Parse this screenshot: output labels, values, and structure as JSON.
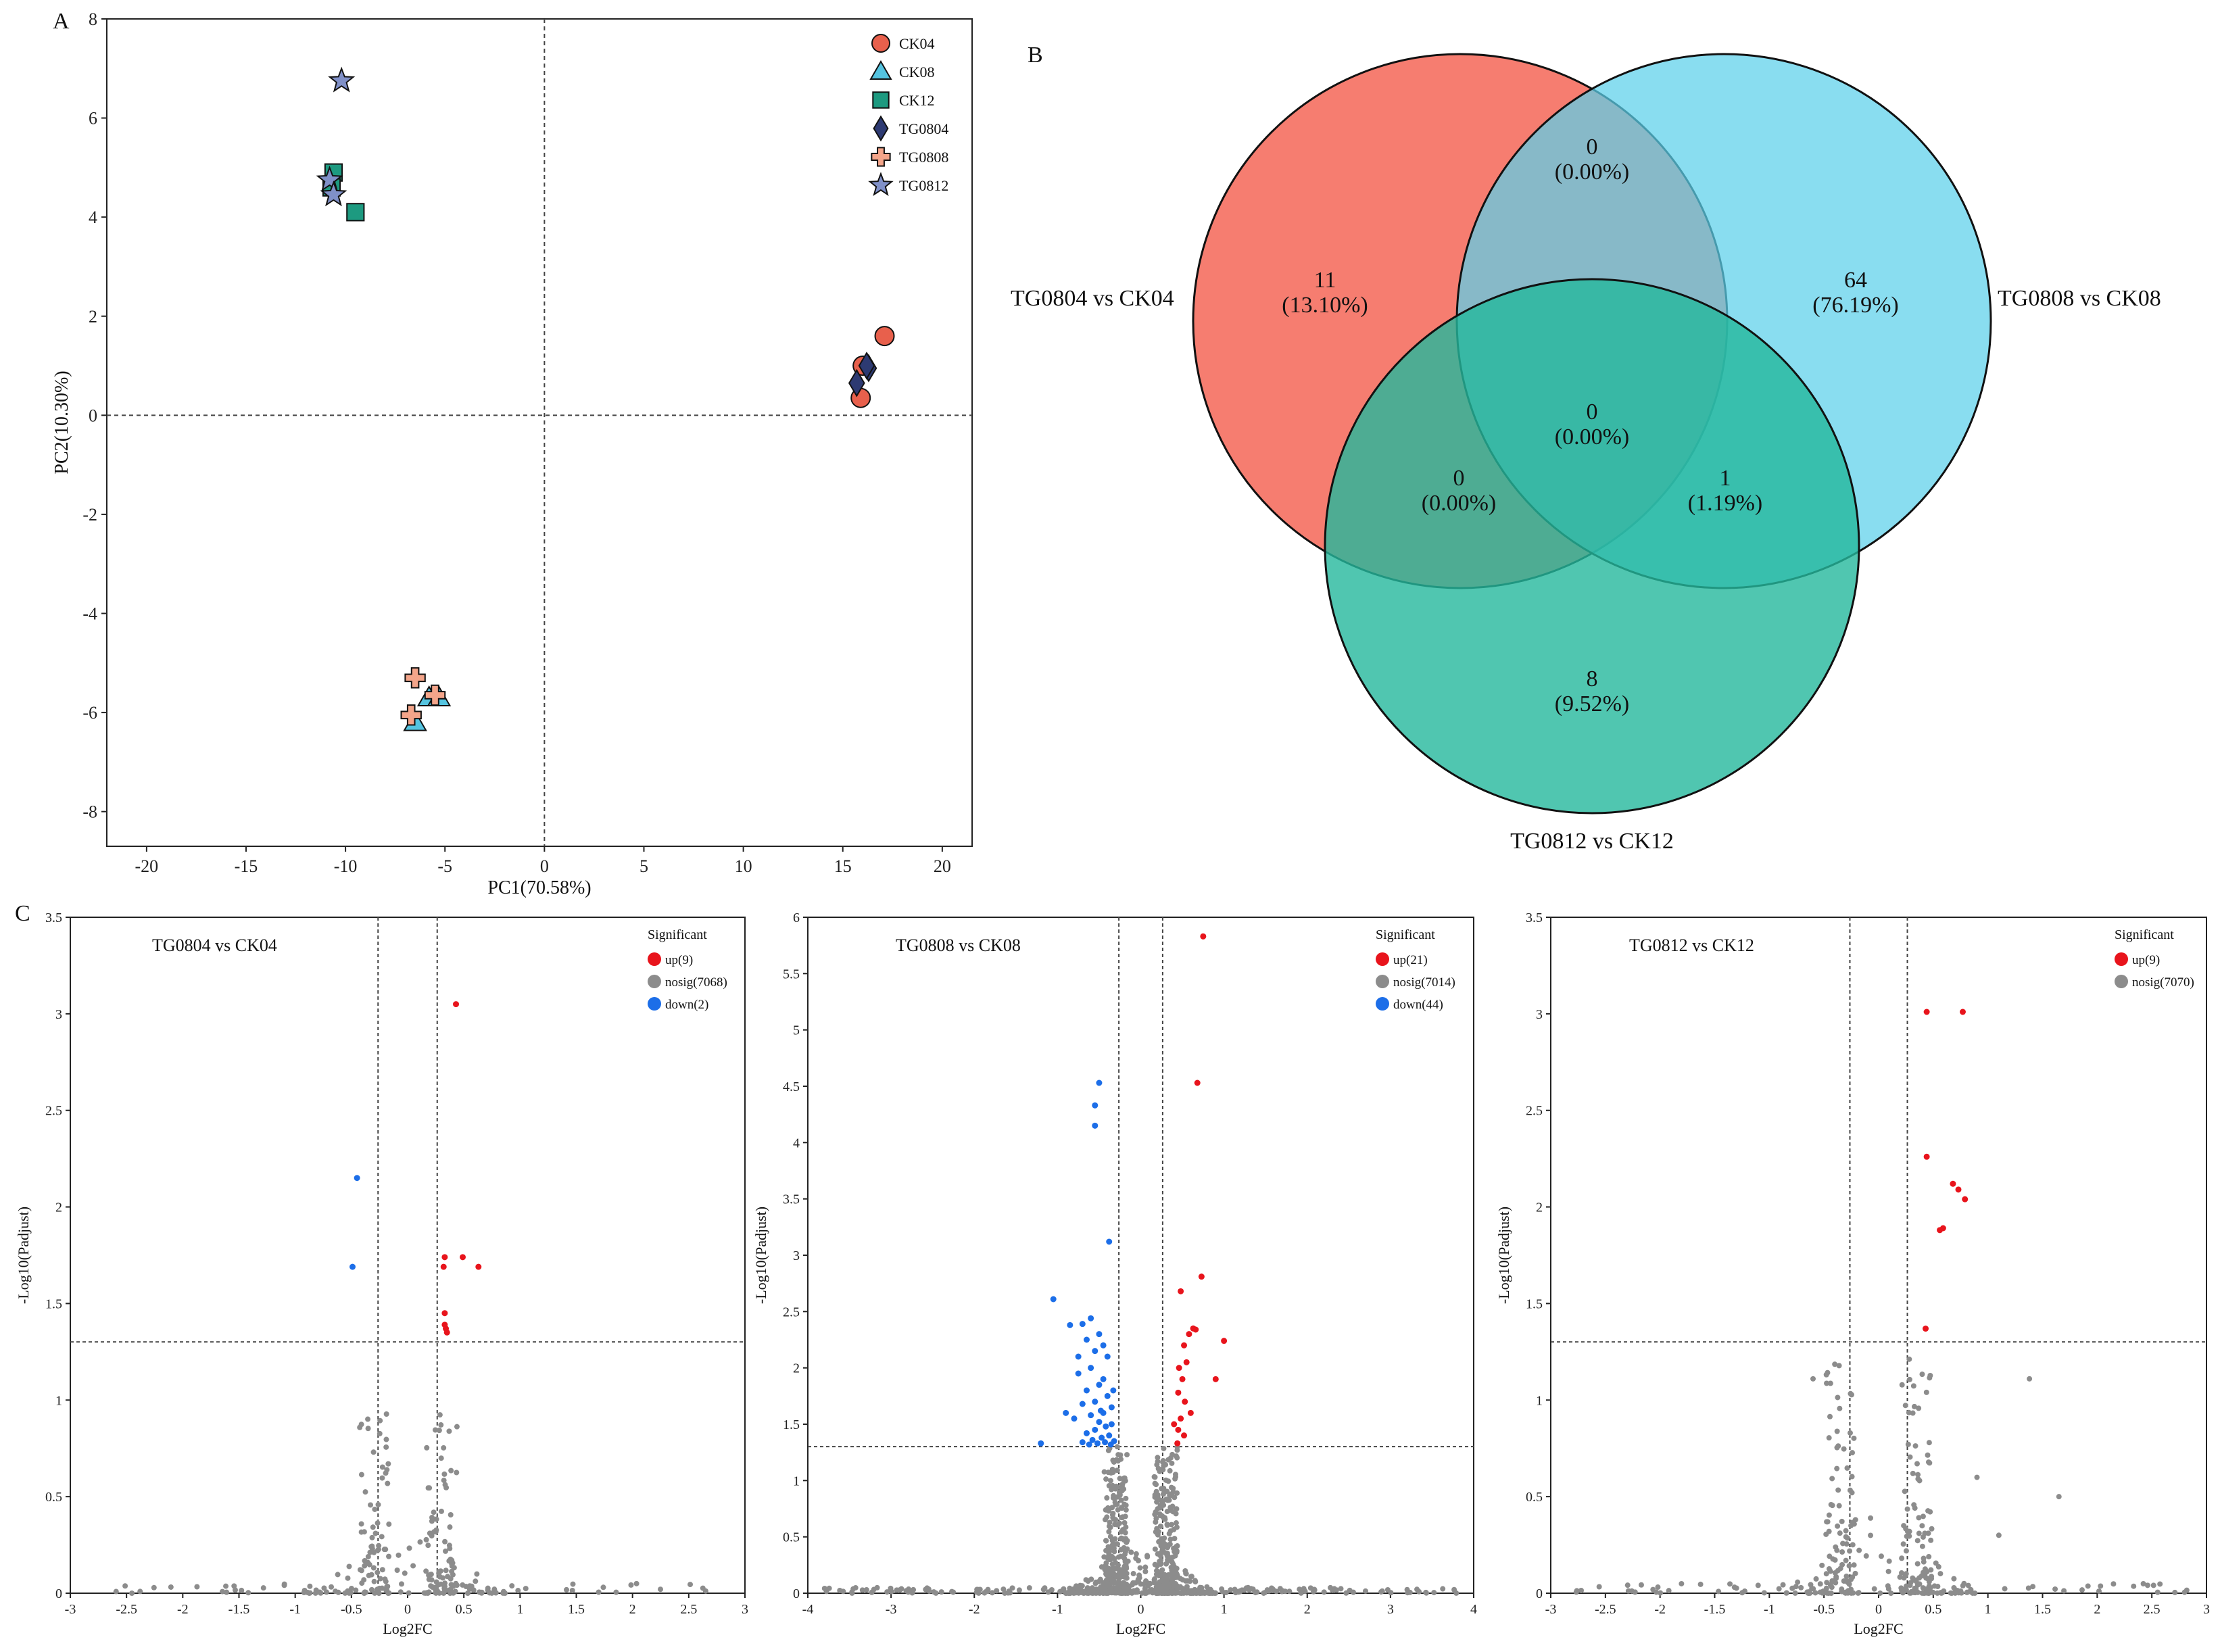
{
  "panels": {
    "A": "A",
    "B": "B",
    "C": "C"
  },
  "colors": {
    "ck04": "#e8604c",
    "ck08": "#55c4e0",
    "ck12": "#1d9a80",
    "tg0804": "#2d3a72",
    "tg0808": "#f4a58a",
    "tg0812": "#8090c8",
    "venn1": "#f56b5c",
    "venn2": "#5bd0ea",
    "venn3": "#24b89c",
    "up": "#e8141c",
    "nosig": "#8c8c8c",
    "down": "#1c6ee8"
  },
  "chart_data": [
    {
      "type": "scatter",
      "title": "",
      "xlabel": "PC1(70.58%)",
      "ylabel": "PC2(10.30%)",
      "xlim": [
        -22,
        21.5
      ],
      "ylim": [
        -8.7,
        8
      ],
      "xticks": [
        -20,
        -15,
        -10,
        -5,
        0,
        5,
        10,
        15,
        20
      ],
      "yticks": [
        -8,
        -6,
        -4,
        -2,
        0,
        2,
        4,
        6,
        8
      ],
      "reference_lines": {
        "x": 0,
        "y": 0
      },
      "legend_position": "top-right",
      "series": [
        {
          "name": "CK04",
          "marker": "circle",
          "color_key": "ck04",
          "points": [
            [
              17.1,
              1.6
            ],
            [
              16.0,
              1.0
            ],
            [
              15.9,
              0.35
            ]
          ]
        },
        {
          "name": "CK08",
          "marker": "triangle",
          "color_key": "ck08",
          "points": [
            [
              -5.8,
              -5.7
            ],
            [
              -5.3,
              -5.7
            ],
            [
              -6.5,
              -6.2
            ]
          ]
        },
        {
          "name": "CK12",
          "marker": "square",
          "color_key": "ck12",
          "points": [
            [
              -10.6,
              4.9
            ],
            [
              -9.5,
              4.1
            ],
            [
              -10.7,
              4.6
            ]
          ]
        },
        {
          "name": "TG0804",
          "marker": "diamond",
          "color_key": "tg0804",
          "points": [
            [
              16.3,
              0.95
            ],
            [
              15.7,
              0.65
            ],
            [
              16.2,
              1.0
            ]
          ]
        },
        {
          "name": "TG0808",
          "marker": "plus",
          "color_key": "tg0808",
          "points": [
            [
              -6.5,
              -5.3
            ],
            [
              -5.5,
              -5.65
            ],
            [
              -6.7,
              -6.05
            ]
          ]
        },
        {
          "name": "TG0812",
          "marker": "star",
          "color_key": "tg0812",
          "points": [
            [
              -10.2,
              6.75
            ],
            [
              -10.8,
              4.75
            ],
            [
              -10.6,
              4.45
            ]
          ]
        }
      ]
    },
    {
      "type": "venn",
      "sets": [
        "TG0804 vs CK04",
        "TG0808 vs CK08",
        "TG0812 vs CK12"
      ],
      "regions": [
        {
          "sets": [
            "TG0804 vs CK04"
          ],
          "count": "11",
          "pct": "(13.10%)"
        },
        {
          "sets": [
            "TG0808 vs CK08"
          ],
          "count": "64",
          "pct": "(76.19%)"
        },
        {
          "sets": [
            "TG0812 vs CK12"
          ],
          "count": "8",
          "pct": "(9.52%)"
        },
        {
          "sets": [
            "TG0804 vs CK04",
            "TG0808 vs CK08"
          ],
          "count": "0",
          "pct": "(0.00%)"
        },
        {
          "sets": [
            "TG0804 vs CK04",
            "TG0812 vs CK12"
          ],
          "count": "0",
          "pct": "(0.00%)"
        },
        {
          "sets": [
            "TG0808 vs CK08",
            "TG0812 vs CK12"
          ],
          "count": "1",
          "pct": "(1.19%)"
        },
        {
          "sets": [
            "TG0804 vs CK04",
            "TG0808 vs CK08",
            "TG0812 vs CK12"
          ],
          "count": "0",
          "pct": "(0.00%)"
        }
      ]
    },
    {
      "type": "scatter",
      "title": "TG0804 vs CK04",
      "xlabel": "Log2FC",
      "ylabel": "-Log10(Padjust)",
      "xlim": [
        -3,
        3
      ],
      "ylim": [
        0,
        3.5
      ],
      "xticks": [
        "-3",
        "-2.5",
        "-2",
        "-1.5",
        "-1",
        "-0.5",
        "0",
        "0.5",
        "1",
        "1.5",
        "2",
        "2.5",
        "3"
      ],
      "yticks": [
        "0",
        "0.5",
        "1",
        "1.5",
        "2",
        "2.5",
        "3",
        "3.5"
      ],
      "thresholds": {
        "x": [
          -0.263,
          0.263
        ],
        "y": 1.301
      },
      "legend_title": "Significant",
      "legend": [
        "up(9)",
        "nosig(7068)",
        "down(2)"
      ],
      "up": [
        [
          0.43,
          3.05
        ],
        [
          0.33,
          1.74
        ],
        [
          0.49,
          1.74
        ],
        [
          0.32,
          1.69
        ],
        [
          0.63,
          1.69
        ],
        [
          0.33,
          1.45
        ],
        [
          0.34,
          1.37
        ],
        [
          0.35,
          1.35
        ],
        [
          0.33,
          1.39
        ]
      ],
      "down": [
        [
          -0.45,
          2.15
        ],
        [
          -0.49,
          1.69
        ]
      ],
      "nosig_profile": {
        "x_range": [
          -2.9,
          2.9
        ],
        "peak_left": -0.3,
        "peak_right": 0.3,
        "max_y": 0.94,
        "n": 260,
        "seed": 11
      }
    },
    {
      "type": "scatter",
      "title": "TG0808 vs CK08",
      "xlabel": "Log2FC",
      "ylabel": "-Log10(Padjust)",
      "xlim": [
        -4,
        4
      ],
      "ylim": [
        0,
        6
      ],
      "xticks": [
        "-4",
        "-3",
        "-2",
        "-1",
        "0",
        "1",
        "2",
        "3",
        "4"
      ],
      "yticks": [
        "0",
        "0.5",
        "1",
        "1.5",
        "2",
        "2.5",
        "3",
        "3.5",
        "4",
        "4.5",
        "5",
        "5.5",
        "6"
      ],
      "thresholds": {
        "x": [
          -0.263,
          0.263
        ],
        "y": 1.301
      },
      "legend_title": "Significant",
      "legend": [
        "up(21)",
        "nosig(7014)",
        "down(44)"
      ],
      "up": [
        [
          0.75,
          5.83
        ],
        [
          0.68,
          4.53
        ],
        [
          0.73,
          2.81
        ],
        [
          0.48,
          2.68
        ],
        [
          0.63,
          2.35
        ],
        [
          1.0,
          2.24
        ],
        [
          0.58,
          2.3
        ],
        [
          0.66,
          2.34
        ],
        [
          0.52,
          2.2
        ],
        [
          0.46,
          2.0
        ],
        [
          0.55,
          2.05
        ],
        [
          0.45,
          1.78
        ],
        [
          0.5,
          1.9
        ],
        [
          0.53,
          1.7
        ],
        [
          0.4,
          1.5
        ],
        [
          0.45,
          1.45
        ],
        [
          0.52,
          1.4
        ],
        [
          0.44,
          1.33
        ],
        [
          0.6,
          1.6
        ],
        [
          0.9,
          1.9
        ],
        [
          0.48,
          1.55
        ]
      ],
      "down": [
        [
          -0.5,
          4.53
        ],
        [
          -0.55,
          4.33
        ],
        [
          -0.55,
          4.15
        ],
        [
          -0.38,
          3.12
        ],
        [
          -1.05,
          2.61
        ],
        [
          -0.6,
          2.44
        ],
        [
          -0.7,
          2.39
        ],
        [
          -0.5,
          2.3
        ],
        [
          -0.65,
          2.25
        ],
        [
          -0.45,
          2.2
        ],
        [
          -0.85,
          2.38
        ],
        [
          -0.55,
          2.15
        ],
        [
          -0.4,
          2.1
        ],
        [
          -0.6,
          2.0
        ],
        [
          -0.75,
          1.95
        ],
        [
          -0.45,
          1.9
        ],
        [
          -0.5,
          1.85
        ],
        [
          -0.65,
          1.8
        ],
        [
          -0.4,
          1.75
        ],
        [
          -0.55,
          1.7
        ],
        [
          -0.7,
          1.68
        ],
        [
          -0.35,
          1.65
        ],
        [
          -0.45,
          1.6
        ],
        [
          -0.6,
          1.58
        ],
        [
          -0.8,
          1.55
        ],
        [
          -0.5,
          1.52
        ],
        [
          -0.35,
          1.5
        ],
        [
          -0.42,
          1.48
        ],
        [
          -0.55,
          1.45
        ],
        [
          -0.65,
          1.42
        ],
        [
          -0.38,
          1.4
        ],
        [
          -0.47,
          1.38
        ],
        [
          -0.58,
          1.36
        ],
        [
          -0.32,
          1.35
        ],
        [
          -1.2,
          1.33
        ],
        [
          -0.43,
          1.34
        ],
        [
          -0.52,
          1.33
        ],
        [
          -0.62,
          1.32
        ],
        [
          -0.36,
          1.32
        ],
        [
          -0.7,
          1.34
        ],
        [
          -0.48,
          1.62
        ],
        [
          -0.33,
          1.8
        ],
        [
          -0.9,
          1.6
        ],
        [
          -0.75,
          2.1
        ]
      ],
      "nosig_profile": {
        "x_range": [
          -3.8,
          3.8
        ],
        "peak_left": -0.3,
        "peak_right": 0.3,
        "max_y": 1.3,
        "n": 900,
        "seed": 23
      }
    },
    {
      "type": "scatter",
      "title": "TG0812 vs CK12",
      "xlabel": "Log2FC",
      "ylabel": "-Log10(Padjust)",
      "xlim": [
        -3,
        3
      ],
      "ylim": [
        0,
        3.5
      ],
      "xticks": [
        "-3",
        "-2.5",
        "-2",
        "-1.5",
        "-1",
        "-0.5",
        "0",
        "0.5",
        "1",
        "1.5",
        "2",
        "2.5",
        "3"
      ],
      "yticks": [
        "0",
        "0.5",
        "1",
        "1.5",
        "2",
        "2.5",
        "3",
        "3.5"
      ],
      "thresholds": {
        "x": [
          -0.263,
          0.263
        ],
        "y": 1.301
      },
      "legend_title": "Significant",
      "legend": [
        "up(9)",
        "nosig(7070)"
      ],
      "up": [
        [
          0.44,
          3.01
        ],
        [
          0.77,
          3.01
        ],
        [
          0.44,
          2.26
        ],
        [
          0.68,
          2.12
        ],
        [
          0.73,
          2.09
        ],
        [
          0.79,
          2.04
        ],
        [
          0.59,
          1.89
        ],
        [
          0.56,
          1.88
        ],
        [
          0.43,
          1.37
        ]
      ],
      "down": [],
      "nosig_profile": {
        "x_range": [
          -2.9,
          2.9
        ],
        "peak_left": -0.35,
        "peak_right": 0.35,
        "max_y": 1.22,
        "n": 320,
        "seed": 37,
        "extras": [
          [
            -0.6,
            1.11
          ],
          [
            1.38,
            1.11
          ],
          [
            1.65,
            0.5
          ],
          [
            1.1,
            0.3
          ],
          [
            0.9,
            0.6
          ]
        ]
      }
    }
  ]
}
